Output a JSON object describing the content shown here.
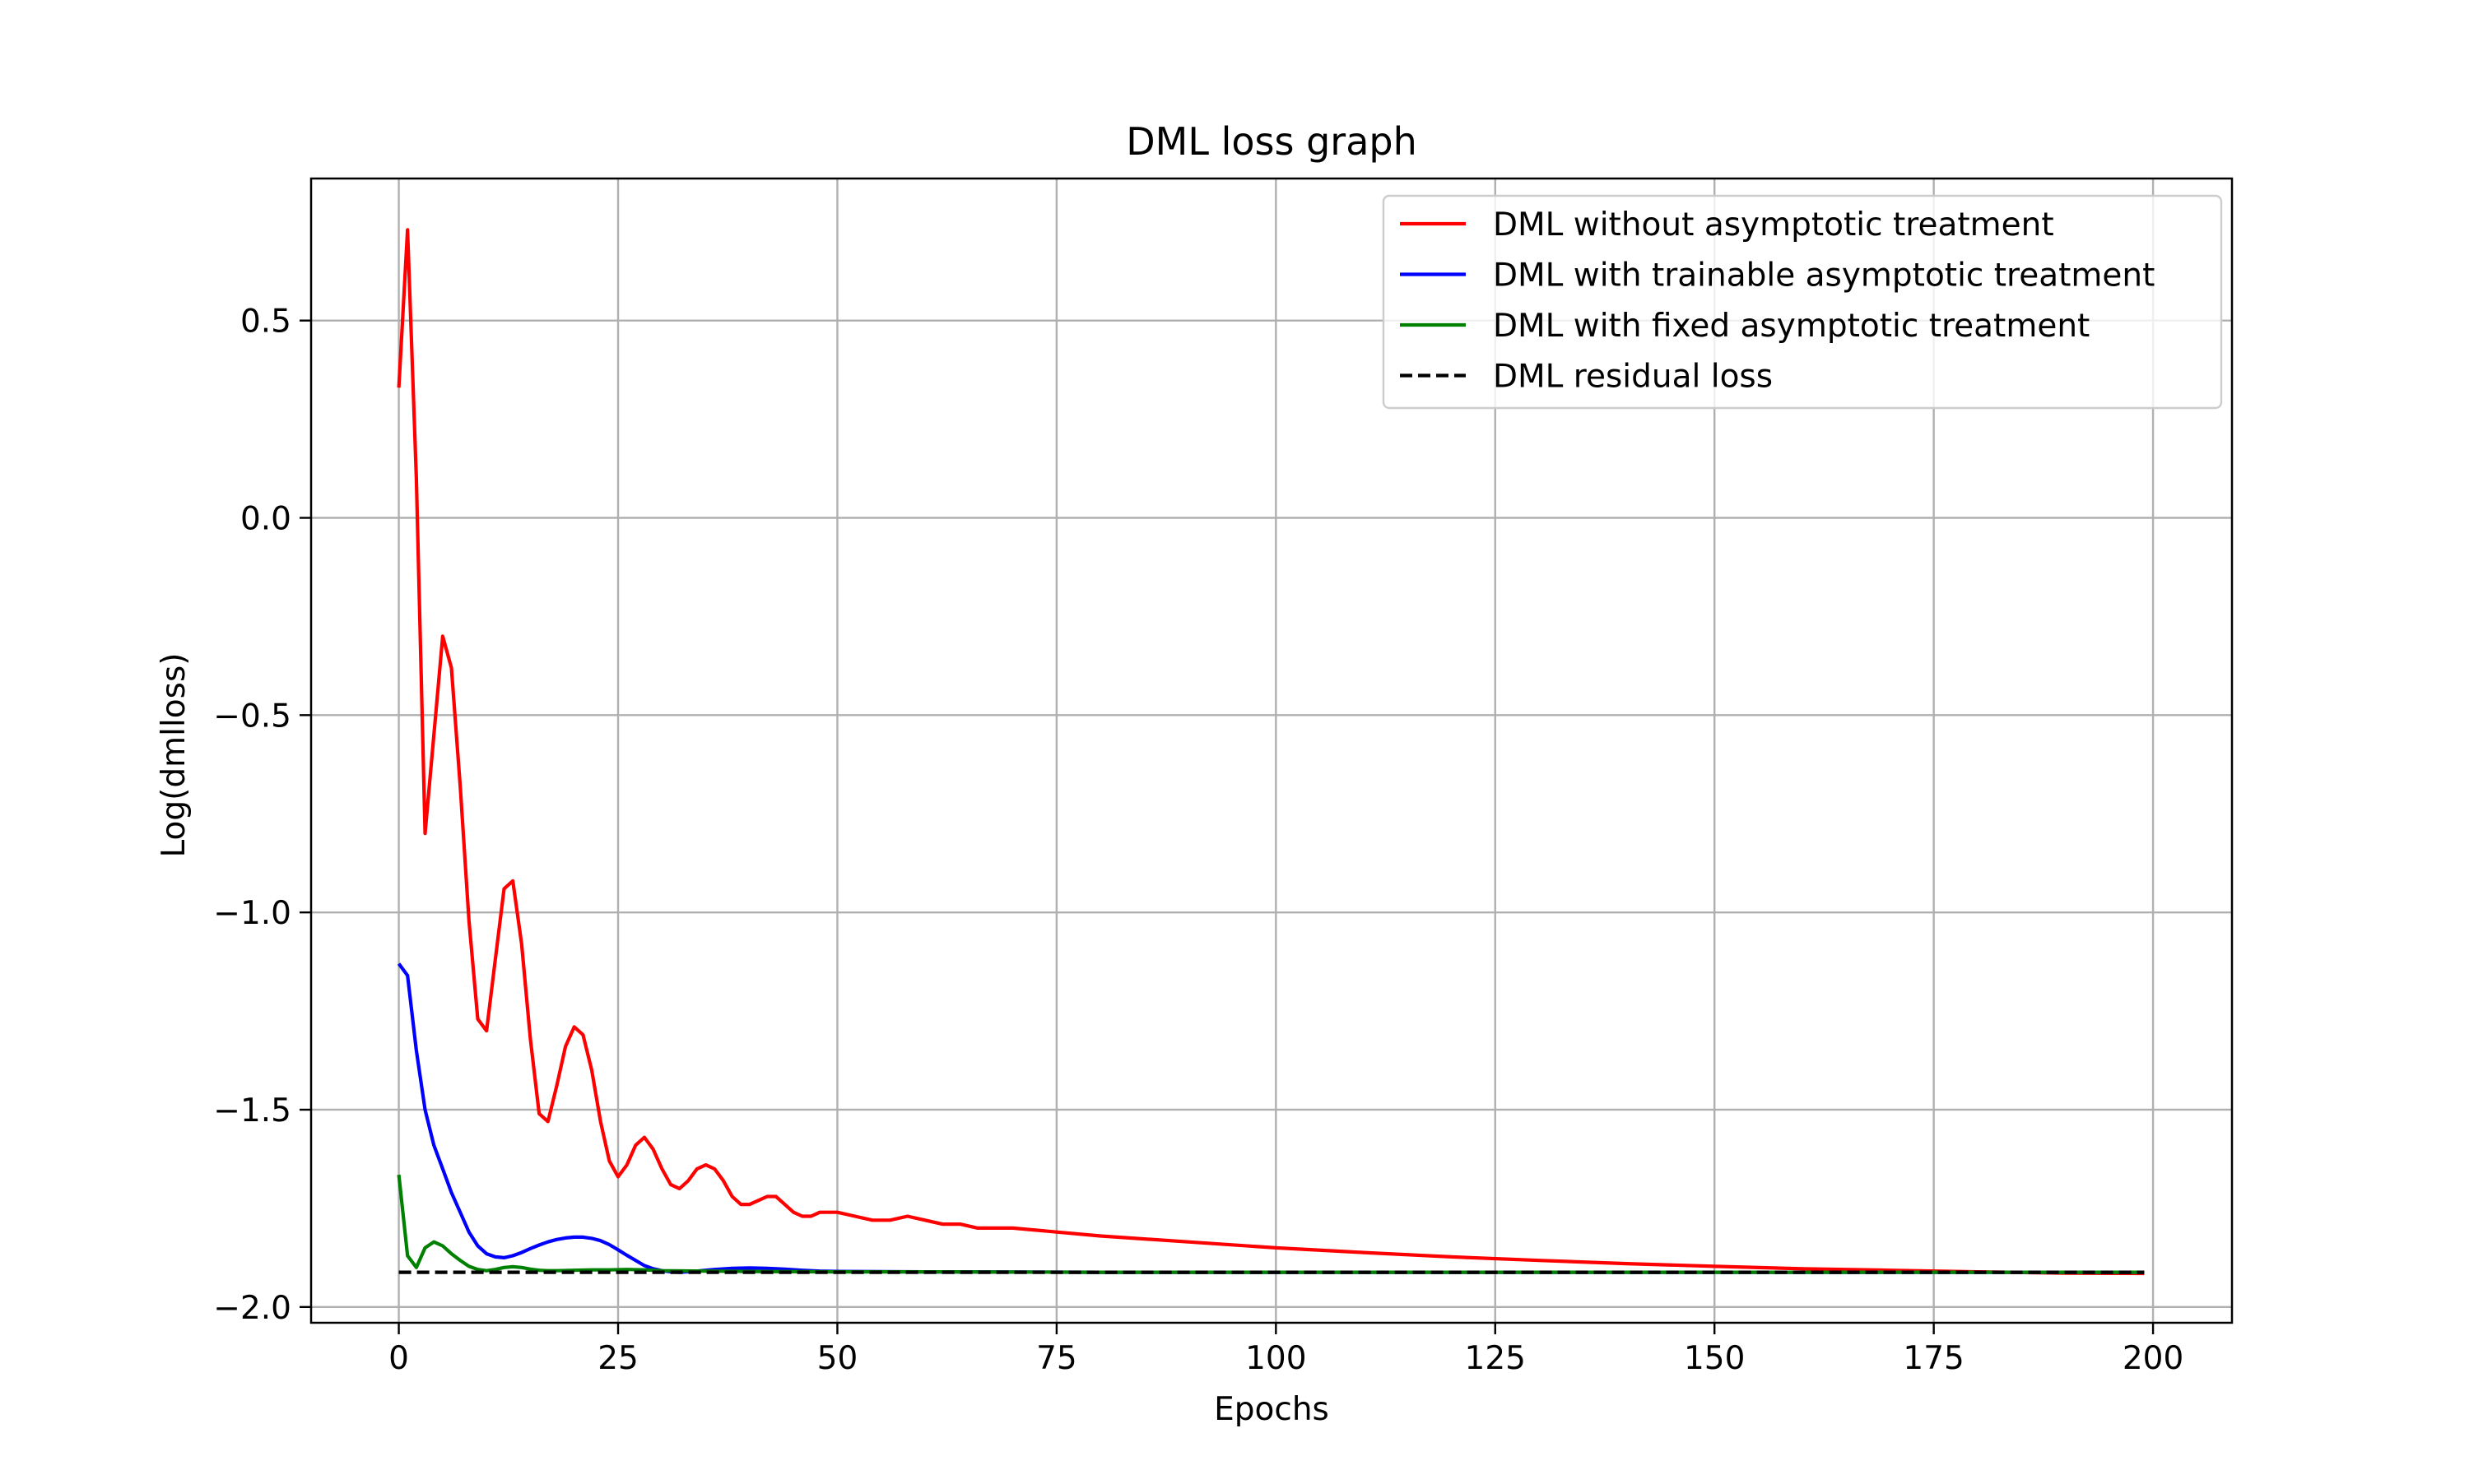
{
  "chart_data": {
    "type": "line",
    "title": "DML loss graph",
    "xlabel": "Epochs",
    "ylabel": "Log(dmlloss)",
    "xlim": [
      -10,
      209
    ],
    "ylim": [
      -2.04,
      0.86
    ],
    "xticks": [
      0,
      25,
      50,
      75,
      100,
      125,
      150,
      175,
      200
    ],
    "xtick_labels": [
      "0",
      "25",
      "50",
      "75",
      "100",
      "125",
      "150",
      "175",
      "200"
    ],
    "yticks": [
      0.5,
      0.0,
      -0.5,
      -1.0,
      -1.5,
      -2.0
    ],
    "ytick_labels": [
      "0.5",
      "0.0",
      "−0.5",
      "−1.0",
      "−1.5",
      "−2.0"
    ],
    "grid": true,
    "legend_position": "top-right",
    "series": [
      {
        "name": "DML without asymptotic treatment",
        "color": "#ff0000",
        "dash": "solid",
        "x": [
          0,
          1,
          2,
          3,
          4,
          5,
          6,
          7,
          8,
          9,
          10,
          11,
          12,
          13,
          14,
          15,
          16,
          17,
          18,
          19,
          20,
          21,
          22,
          23,
          24,
          25,
          26,
          27,
          28,
          29,
          30,
          31,
          32,
          33,
          34,
          35,
          36,
          37,
          38,
          39,
          40,
          41,
          42,
          43,
          44,
          45,
          46,
          47,
          48,
          49,
          50,
          52,
          54,
          56,
          58,
          60,
          62,
          64,
          66,
          68,
          70,
          75,
          80,
          90,
          100,
          110,
          120,
          130,
          140,
          150,
          160,
          170,
          180,
          190,
          199
        ],
        "y": [
          0.33,
          0.73,
          0.1,
          -0.8,
          -0.55,
          -0.3,
          -0.38,
          -0.68,
          -1.02,
          -1.27,
          -1.3,
          -1.12,
          -0.94,
          -0.92,
          -1.08,
          -1.32,
          -1.51,
          -1.53,
          -1.44,
          -1.34,
          -1.29,
          -1.31,
          -1.4,
          -1.53,
          -1.63,
          -1.67,
          -1.64,
          -1.59,
          -1.57,
          -1.6,
          -1.65,
          -1.69,
          -1.7,
          -1.68,
          -1.65,
          -1.64,
          -1.65,
          -1.68,
          -1.72,
          -1.74,
          -1.74,
          -1.73,
          -1.72,
          -1.72,
          -1.74,
          -1.76,
          -1.77,
          -1.77,
          -1.76,
          -1.76,
          -1.76,
          -1.77,
          -1.78,
          -1.78,
          -1.77,
          -1.78,
          -1.79,
          -1.79,
          -1.8,
          -1.8,
          -1.8,
          -1.81,
          -1.82,
          -1.835,
          -1.85,
          -1.862,
          -1.873,
          -1.882,
          -1.89,
          -1.897,
          -1.903,
          -1.907,
          -1.911,
          -1.914,
          -1.915
        ]
      },
      {
        "name": "DML with trainable asymptotic treatment",
        "color": "#0000ff",
        "dash": "solid",
        "x": [
          0,
          1,
          2,
          3,
          4,
          5,
          6,
          7,
          8,
          9,
          10,
          11,
          12,
          13,
          14,
          15,
          16,
          17,
          18,
          19,
          20,
          21,
          22,
          23,
          24,
          25,
          26,
          27,
          28,
          29,
          30,
          31,
          32,
          34,
          36,
          38,
          40,
          42,
          44,
          46,
          48,
          50,
          60,
          80,
          100,
          150,
          199
        ],
        "y": [
          -1.13,
          -1.16,
          -1.35,
          -1.5,
          -1.59,
          -1.65,
          -1.71,
          -1.76,
          -1.81,
          -1.845,
          -1.865,
          -1.873,
          -1.875,
          -1.87,
          -1.862,
          -1.852,
          -1.843,
          -1.835,
          -1.829,
          -1.825,
          -1.823,
          -1.823,
          -1.826,
          -1.832,
          -1.842,
          -1.855,
          -1.869,
          -1.882,
          -1.895,
          -1.903,
          -1.908,
          -1.911,
          -1.912,
          -1.909,
          -1.905,
          -1.902,
          -1.901,
          -1.902,
          -1.904,
          -1.907,
          -1.909,
          -1.91,
          -1.911,
          -1.912,
          -1.912,
          -1.912,
          -1.912
        ]
      },
      {
        "name": "DML with fixed asymptotic treatment",
        "color": "#008000",
        "dash": "solid",
        "x": [
          0,
          1,
          2,
          3,
          4,
          5,
          6,
          7,
          8,
          9,
          10,
          11,
          12,
          13,
          14,
          15,
          16,
          17,
          18,
          20,
          22,
          24,
          26,
          28,
          30,
          35,
          40,
          50,
          60,
          80,
          100,
          150,
          199
        ],
        "y": [
          -1.665,
          -1.87,
          -1.9,
          -1.85,
          -1.835,
          -1.845,
          -1.865,
          -1.882,
          -1.897,
          -1.905,
          -1.908,
          -1.905,
          -1.9,
          -1.898,
          -1.9,
          -1.904,
          -1.907,
          -1.908,
          -1.908,
          -1.907,
          -1.906,
          -1.906,
          -1.905,
          -1.906,
          -1.908,
          -1.909,
          -1.91,
          -1.911,
          -1.911,
          -1.912,
          -1.912,
          -1.912,
          -1.912
        ]
      },
      {
        "name": "DML residual loss",
        "color": "#000000",
        "dash": "dashed",
        "x": [
          0,
          199
        ],
        "y": [
          -1.912,
          -1.912
        ]
      }
    ]
  }
}
